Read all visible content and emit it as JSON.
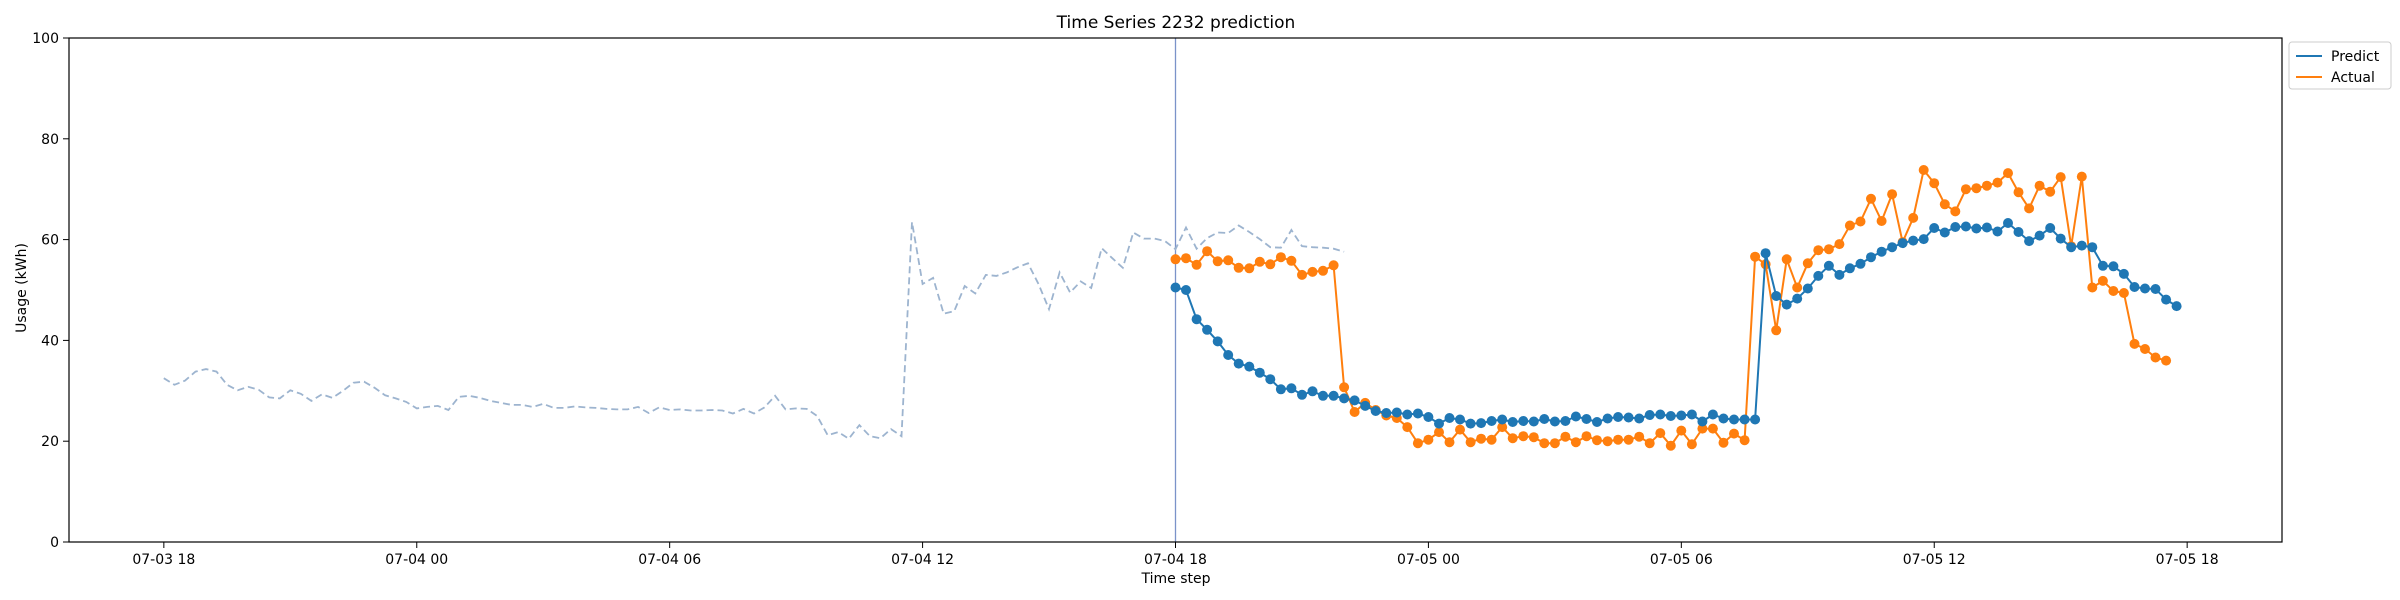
{
  "chart_data": {
    "type": "line",
    "title": "Time Series 2232 prediction",
    "xlabel": "Time step",
    "ylabel": "Usage (kWh)",
    "ylim": [
      0,
      100
    ],
    "yticks": [
      0,
      20,
      40,
      60,
      80,
      100
    ],
    "xlim": [
      "2024-07-03T15:45",
      "2024-07-05T20:15"
    ],
    "xticks": [
      {
        "t": "2024-07-03T18:00",
        "label": "07-03 18"
      },
      {
        "t": "2024-07-04T00:00",
        "label": "07-04 00"
      },
      {
        "t": "2024-07-04T06:00",
        "label": "07-04 06"
      },
      {
        "t": "2024-07-04T12:00",
        "label": "07-04 12"
      },
      {
        "t": "2024-07-04T18:00",
        "label": "07-04 18"
      },
      {
        "t": "2024-07-05T00:00",
        "label": "07-05 00"
      },
      {
        "t": "2024-07-05T06:00",
        "label": "07-05 06"
      },
      {
        "t": "2024-07-05T12:00",
        "label": "07-05 12"
      },
      {
        "t": "2024-07-05T18:00",
        "label": "07-05 18"
      }
    ],
    "step_minutes": 15,
    "forecast_start": "2024-07-04T18:00",
    "legend_position": "top-right",
    "series": [
      {
        "name": "",
        "color": "#9db4cf",
        "style": "dashed",
        "start": "2024-07-03T18:00",
        "values": [
          32.5,
          31.2,
          32,
          33.8,
          34.3,
          33.8,
          31.2,
          30.1,
          30.8,
          30.2,
          28.7,
          28.5,
          30.1,
          29.4,
          28,
          29.3,
          28.6,
          30,
          31.6,
          31.8,
          30.6,
          29.1,
          28.5,
          27.8,
          26.5,
          26.8,
          27,
          26.2,
          28.8,
          29,
          28.6,
          28,
          27.6,
          27.2,
          27.2,
          26.8,
          27.4,
          26.6,
          26.6,
          26.9,
          26.7,
          26.6,
          26.4,
          26.3,
          26.3,
          26.8,
          25.6,
          26.7,
          26.2,
          26.3,
          26.1,
          26.1,
          26.2,
          26.1,
          25.5,
          26.4,
          25.5,
          26.7,
          29,
          26.3,
          26.5,
          26.4,
          25,
          21.2,
          21.8,
          20.5,
          23.2,
          21,
          20.6,
          22.4,
          21,
          63.5,
          51.2,
          52.4,
          45.3,
          45.8,
          50.8,
          49.3,
          53,
          52.8,
          53.5,
          54.5,
          55.3,
          51.2,
          46.2,
          53.5,
          49.5,
          51.7,
          50.4,
          58.3,
          56.3,
          54.4,
          61.4,
          60.2,
          60.2,
          59.7,
          58.1,
          62.4,
          58.2,
          60.3,
          61.4,
          61.3,
          62.8,
          61.5,
          60.1,
          58.5,
          58.4,
          61.9,
          58.7,
          58.5,
          58.4,
          58.2,
          57.6
        ]
      },
      {
        "name": "Predict",
        "color": "#1f77b4",
        "style": "solid-markers",
        "start": "2024-07-04T18:00",
        "values": [
          50.5,
          50,
          44.2,
          42.1,
          39.8,
          37.1,
          35.4,
          34.8,
          33.6,
          32.3,
          30.3,
          30.5,
          29.2,
          29.9,
          29,
          29,
          28.5,
          28.1,
          27,
          26,
          25.6,
          25.7,
          25.3,
          25.5,
          24.8,
          23.5,
          24.6,
          24.3,
          23.5,
          23.6,
          24,
          24.3,
          23.8,
          24,
          23.9,
          24.4,
          23.9,
          24,
          24.9,
          24.4,
          23.8,
          24.5,
          24.8,
          24.7,
          24.5,
          25.2,
          25.3,
          25,
          25.1,
          25.3,
          23.9,
          25.3,
          24.5,
          24.3,
          24.3,
          24.3,
          57.3,
          48.8,
          47.1,
          48.3,
          50.3,
          52.8,
          54.8,
          53,
          54.3,
          55.2,
          56.5,
          57.6,
          58.5,
          59.3,
          59.8,
          60.1,
          62.3,
          61.4,
          62.5,
          62.6,
          62.2,
          62.4,
          61.6,
          63.3,
          61.5,
          59.7,
          60.8,
          62.3,
          60.2,
          58.5,
          58.8,
          58.5,
          54.8,
          54.7,
          53.2,
          50.6,
          50.3,
          50.2,
          48.1,
          46.8
        ]
      },
      {
        "name": "Actual",
        "color": "#ff7f0e",
        "style": "solid-markers",
        "start": "2024-07-04T18:00",
        "values": [
          56.1,
          56.3,
          55,
          57.7,
          55.7,
          55.9,
          54.4,
          54.3,
          55.6,
          55.1,
          56.5,
          55.8,
          53,
          53.6,
          53.8,
          54.9,
          30.7,
          25.8,
          27.6,
          26.2,
          25.1,
          24.6,
          22.8,
          19.6,
          20.3,
          21.8,
          19.8,
          22.3,
          19.8,
          20.5,
          20.3,
          22.8,
          20.6,
          21,
          20.8,
          19.6,
          19.6,
          20.9,
          19.8,
          21,
          20.2,
          20,
          20.3,
          20.3,
          20.9,
          19.6,
          21.6,
          19.1,
          22.1,
          19.4,
          22.5,
          22.5,
          19.7,
          21.5,
          20.2,
          56.6,
          55.1,
          42,
          56.1,
          50.5,
          55.3,
          57.9,
          58.1,
          59.1,
          62.8,
          63.6,
          68.1,
          63.7,
          69,
          59.5,
          64.3,
          73.8,
          71.2,
          67,
          65.6,
          70,
          70.2,
          70.7,
          71.3,
          73.2,
          69.4,
          66.2,
          70.7,
          69.5,
          72.4,
          58.7,
          72.5,
          50.5,
          51.8,
          49.8,
          49.4,
          39.3,
          38.3,
          36.6,
          36
        ]
      }
    ]
  }
}
